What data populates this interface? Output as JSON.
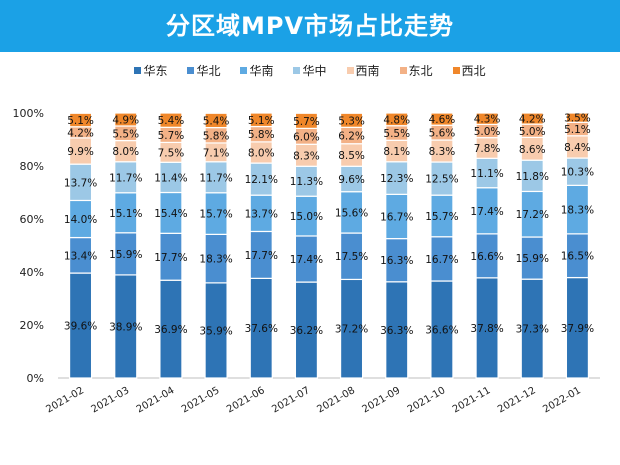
{
  "header": {
    "title": "分区域MPV市场占比走势"
  },
  "chart_data": {
    "type": "bar",
    "stacked": true,
    "categories": [
      "2021-02",
      "2021-03",
      "2021-04",
      "2021-05",
      "2021-06",
      "2021-07",
      "2021-08",
      "2021-09",
      "2021-10",
      "2021-11",
      "2021-12",
      "2022-01"
    ],
    "series": [
      {
        "name": "华东",
        "color": "#2e74b5",
        "values": [
          39.6,
          38.9,
          36.9,
          35.9,
          37.6,
          36.2,
          37.2,
          36.3,
          36.6,
          37.8,
          37.3,
          37.9
        ]
      },
      {
        "name": "华北",
        "color": "#4a8ed0",
        "values": [
          13.4,
          15.9,
          17.7,
          18.3,
          17.7,
          17.4,
          17.5,
          16.3,
          16.7,
          16.6,
          15.9,
          16.5
        ]
      },
      {
        "name": "华南",
        "color": "#5eaae2",
        "values": [
          14.0,
          15.1,
          15.4,
          15.7,
          13.7,
          15.0,
          15.6,
          16.7,
          15.7,
          17.4,
          17.2,
          18.3
        ]
      },
      {
        "name": "华中",
        "color": "#9cc8e6",
        "values": [
          13.7,
          11.7,
          11.4,
          11.7,
          12.1,
          11.3,
          9.6,
          12.3,
          12.5,
          11.1,
          11.8,
          10.3
        ]
      },
      {
        "name": "西南",
        "color": "#f8ccae",
        "values": [
          9.9,
          8.0,
          7.5,
          7.1,
          8.0,
          8.3,
          8.5,
          8.1,
          8.3,
          7.8,
          8.6,
          8.4
        ]
      },
      {
        "name": "东北",
        "color": "#f3b186",
        "values": [
          4.2,
          5.5,
          5.7,
          5.8,
          5.8,
          6.0,
          6.2,
          5.5,
          5.6,
          5.0,
          5.0,
          5.1
        ]
      },
      {
        "name": "西北",
        "color": "#f0872a",
        "values": [
          5.1,
          4.9,
          5.4,
          5.4,
          5.1,
          5.7,
          5.3,
          4.8,
          4.6,
          4.3,
          4.2,
          3.5
        ]
      }
    ],
    "ylim": [
      0,
      100
    ],
    "yticks": [
      "0%",
      "20%",
      "40%",
      "60%",
      "80%",
      "100%"
    ],
    "grid": false,
    "legend": "top",
    "xlabel": "",
    "ylabel": ""
  }
}
